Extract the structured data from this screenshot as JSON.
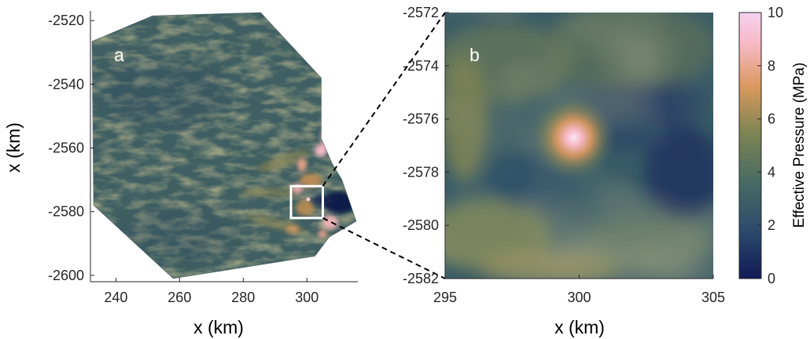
{
  "chart_data": [
    {
      "panel": "a",
      "type": "heatmap",
      "panel_label": "a",
      "xlabel": "x (km)",
      "ylabel": "x (km)",
      "xlim": [
        232,
        316
      ],
      "ylim": [
        -2602,
        -2517
      ],
      "x_ticks": [
        240,
        260,
        280,
        300
      ],
      "y_ticks": [
        -2520,
        -2540,
        -2560,
        -2580,
        -2600
      ],
      "x_tick_labels": [
        "240",
        "260",
        "280",
        "300"
      ],
      "y_tick_labels": [
        "-2520",
        "-2540",
        "-2560",
        "-2580",
        "-2600"
      ],
      "domain_outline_km": [
        [
          232.5,
          -2526.5
        ],
        [
          251.5,
          -2518.5
        ],
        [
          285.5,
          -2517.5
        ],
        [
          304.5,
          -2538
        ],
        [
          304.5,
          -2557
        ],
        [
          308,
          -2565
        ],
        [
          311,
          -2570
        ],
        [
          315.5,
          -2583
        ],
        [
          307,
          -2588
        ],
        [
          302.5,
          -2594
        ],
        [
          258,
          -2601
        ],
        [
          233,
          -2578
        ]
      ],
      "zoom_box_km": {
        "x": [
          295,
          305
        ],
        "y": [
          -2582,
          -2572
        ]
      },
      "grid": false
    },
    {
      "panel": "b",
      "type": "heatmap",
      "panel_label": "b",
      "xlabel": "x (km)",
      "ylabel": "",
      "xlim": [
        295,
        305
      ],
      "ylim": [
        -2582,
        -2572
      ],
      "x_ticks": [
        295,
        300,
        305
      ],
      "y_ticks": [
        -2572,
        -2574,
        -2576,
        -2578,
        -2580,
        -2582
      ],
      "x_tick_labels": [
        "295",
        "300",
        "305"
      ],
      "y_tick_labels": [
        "-2572",
        "-2574",
        "-2576",
        "-2578",
        "-2580",
        "-2582"
      ],
      "peak_location_km": [
        299.8,
        -2576.7
      ],
      "grid": false
    }
  ],
  "colorbar": {
    "label": "Effective Pressure (MPa)",
    "min": 0,
    "max": 10,
    "ticks": [
      0,
      2,
      4,
      6,
      8,
      10
    ],
    "tick_labels": [
      "0",
      "2",
      "4",
      "6",
      "8",
      "10"
    ],
    "colors": [
      "#121a55",
      "#2c4a6c",
      "#4c6e63",
      "#7f8552",
      "#d9985c",
      "#f7b9c4",
      "#f5d2f0"
    ]
  }
}
